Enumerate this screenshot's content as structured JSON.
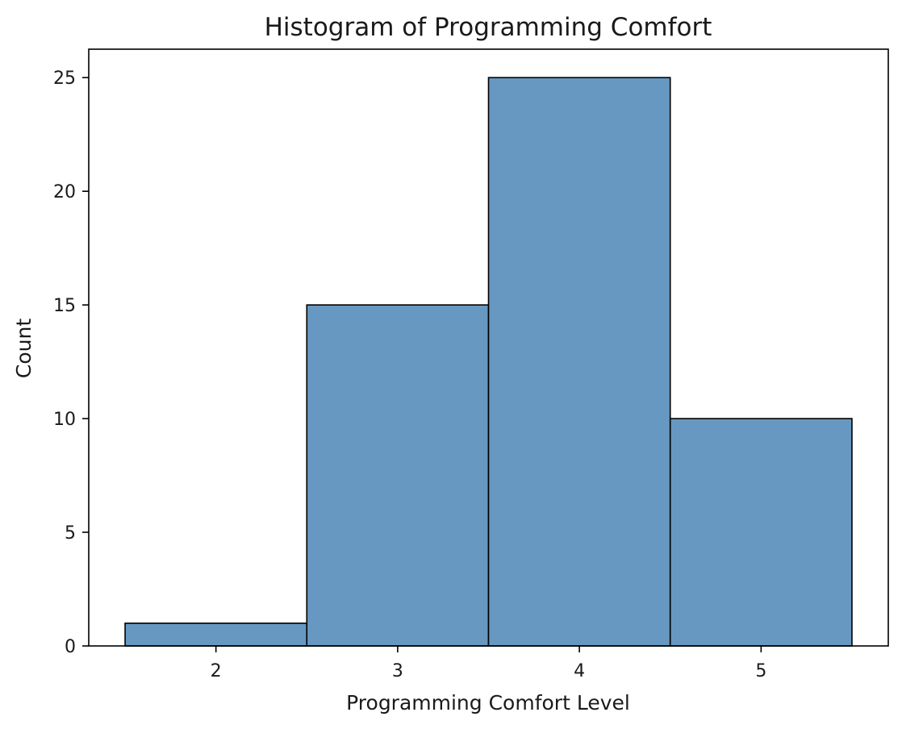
{
  "chart_data": {
    "type": "bar",
    "title": "Histogram of Programming Comfort",
    "xlabel": "Programming Comfort Level",
    "ylabel": "Count",
    "bins": [
      {
        "center": 2,
        "left": 1.5,
        "right": 2.5,
        "count": 1
      },
      {
        "center": 3,
        "left": 2.5,
        "right": 3.5,
        "count": 15
      },
      {
        "center": 4,
        "left": 3.5,
        "right": 4.5,
        "count": 25
      },
      {
        "center": 5,
        "left": 4.5,
        "right": 5.5,
        "count": 10
      }
    ],
    "xlim": [
      1.3,
      5.7
    ],
    "ylim": [
      0,
      26.25
    ],
    "xticks": [
      2,
      3,
      4,
      5
    ],
    "yticks": [
      0,
      5,
      10,
      15,
      20,
      25
    ],
    "grid": false,
    "bar_color": "#6798c1",
    "edge_color": "#000000"
  }
}
